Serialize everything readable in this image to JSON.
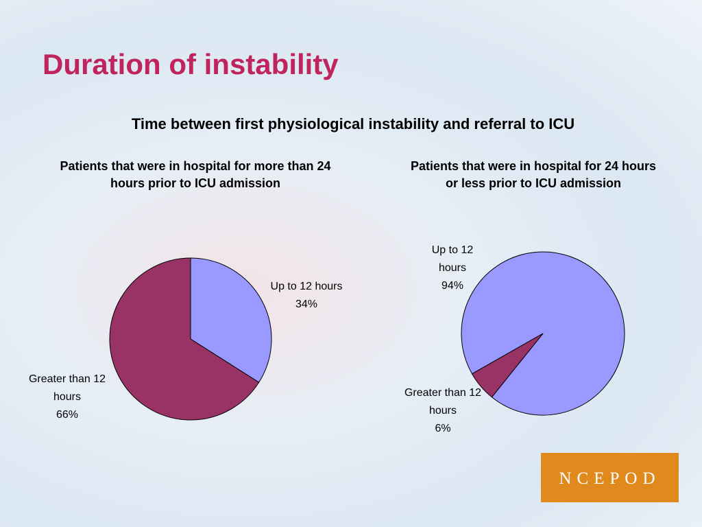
{
  "title": "Duration of instability",
  "subtitle": "Time between first physiological instability and referral to ICU",
  "logo": "NCEPOD",
  "chart_data": [
    {
      "type": "pie",
      "title": "Patients that were in hospital for more than 24 hours prior to ICU admission",
      "categories": [
        "Up to 12 hours",
        "Greater than 12 hours"
      ],
      "values": [
        34,
        66
      ],
      "value_labels": [
        "34%",
        "66%"
      ],
      "colors": [
        "#9999ff",
        "#993366"
      ]
    },
    {
      "type": "pie",
      "title": "Patients that were in hospital for 24 hours or less prior to ICU admission",
      "categories": [
        "Up to 12 hours",
        "Greater than 12 hours"
      ],
      "values": [
        94,
        6
      ],
      "value_labels": [
        "94%",
        "6%"
      ],
      "colors": [
        "#9999ff",
        "#993366"
      ]
    }
  ]
}
